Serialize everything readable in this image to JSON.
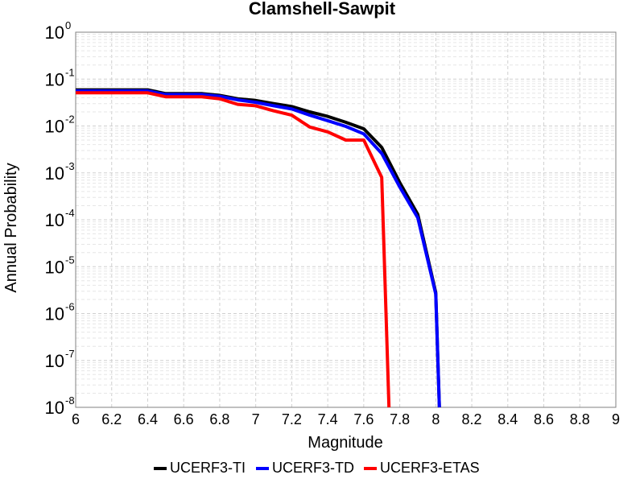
{
  "chart_data": {
    "type": "line",
    "title": "Clamshell-Sawpit",
    "xlabel": "Magnitude",
    "ylabel": "Annual Probability",
    "xlim": [
      6,
      9
    ],
    "ylim": [
      1e-08,
      1
    ],
    "yscale": "log",
    "grid": true,
    "legend_position": "bottom",
    "x_ticks": [
      "6",
      "6.2",
      "6.4",
      "6.6",
      "6.8",
      "7",
      "7.2",
      "7.4",
      "7.6",
      "7.8",
      "8",
      "8.2",
      "8.4",
      "8.6",
      "8.8",
      "9"
    ],
    "y_ticks": [
      {
        "base": "10",
        "exp": "-8"
      },
      {
        "base": "10",
        "exp": "-7"
      },
      {
        "base": "10",
        "exp": "-6"
      },
      {
        "base": "10",
        "exp": "-5"
      },
      {
        "base": "10",
        "exp": "-4"
      },
      {
        "base": "10",
        "exp": "-3"
      },
      {
        "base": "10",
        "exp": "-2"
      },
      {
        "base": "10",
        "exp": "-1"
      },
      {
        "base": "10",
        "exp": "0"
      }
    ],
    "series": [
      {
        "name": "UCERF3-TI",
        "color": "#000000",
        "x": [
          6.0,
          6.1,
          6.2,
          6.3,
          6.4,
          6.5,
          6.6,
          6.7,
          6.8,
          6.9,
          7.0,
          7.1,
          7.2,
          7.3,
          7.4,
          7.5,
          7.6,
          7.7,
          7.8,
          7.9,
          8.0,
          8.02
        ],
        "y": [
          0.059,
          0.059,
          0.059,
          0.059,
          0.059,
          0.049,
          0.049,
          0.049,
          0.045,
          0.038,
          0.035,
          0.03,
          0.026,
          0.02,
          0.016,
          0.012,
          0.0087,
          0.0035,
          0.00062,
          0.00013,
          2.8e-06,
          1e-08
        ]
      },
      {
        "name": "UCERF3-TD",
        "color": "#0000ff",
        "x": [
          6.0,
          6.1,
          6.2,
          6.3,
          6.4,
          6.5,
          6.6,
          6.7,
          6.8,
          6.9,
          7.0,
          7.1,
          7.2,
          7.3,
          7.4,
          7.5,
          7.6,
          7.7,
          7.8,
          7.9,
          8.0,
          8.02
        ],
        "y": [
          0.056,
          0.056,
          0.056,
          0.056,
          0.056,
          0.047,
          0.047,
          0.047,
          0.043,
          0.036,
          0.032,
          0.027,
          0.023,
          0.017,
          0.013,
          0.0098,
          0.0068,
          0.0026,
          0.0005,
          0.00011,
          2.6e-06,
          1e-08
        ]
      },
      {
        "name": "UCERF3-ETAS",
        "color": "#ff0000",
        "x": [
          6.0,
          6.1,
          6.2,
          6.3,
          6.4,
          6.5,
          6.6,
          6.7,
          6.8,
          6.9,
          7.0,
          7.1,
          7.2,
          7.3,
          7.4,
          7.5,
          7.6,
          7.7,
          7.74
        ],
        "y": [
          0.051,
          0.051,
          0.051,
          0.051,
          0.051,
          0.042,
          0.042,
          0.042,
          0.038,
          0.029,
          0.027,
          0.021,
          0.017,
          0.0095,
          0.0075,
          0.005,
          0.005,
          0.0008,
          1e-08
        ]
      }
    ]
  }
}
